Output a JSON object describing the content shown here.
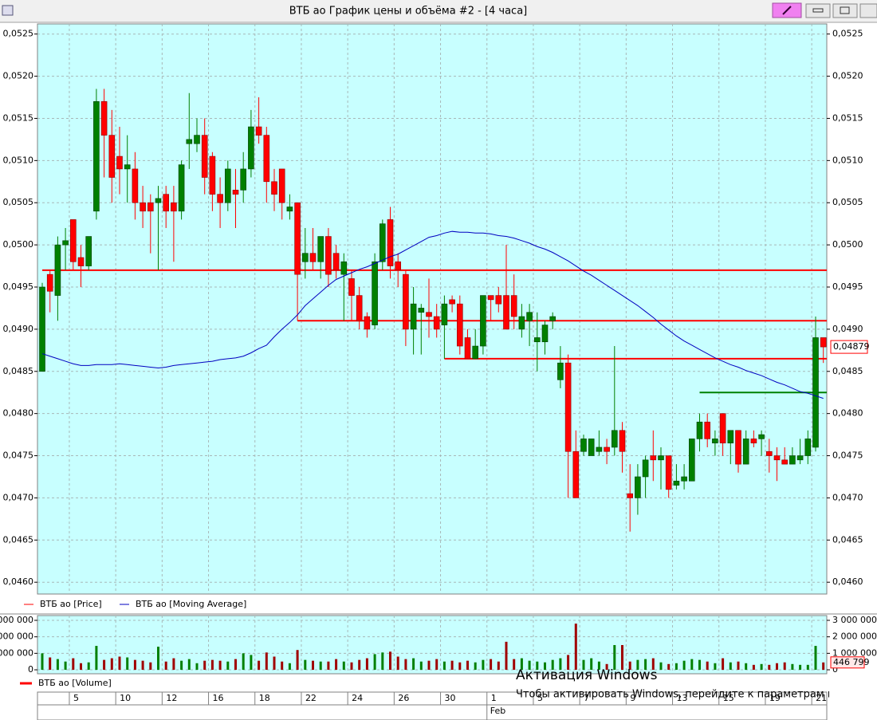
{
  "window": {
    "title": "ВТБ ао График цены и объёма #2 - [4 часа]"
  },
  "watermark": {
    "title": "Активация Windows",
    "text": "Чтобы активировать Windows, перейдите к параметрам компьютера."
  },
  "chart_data": [
    {
      "type": "candlestick",
      "categories": [
        null,
        null,
        null,
        null,
        "5",
        null,
        null,
        null,
        null,
        null,
        "10",
        null,
        null,
        null,
        null,
        null,
        "12",
        null,
        null,
        null,
        null,
        null,
        "16",
        null,
        null,
        null,
        null,
        null,
        "18",
        null,
        null,
        null,
        null,
        null,
        "22",
        null,
        null,
        null,
        null,
        null,
        "24",
        null,
        null,
        null,
        null,
        null,
        "26",
        null,
        null,
        null,
        null,
        null,
        "30",
        null,
        null,
        null,
        null,
        null,
        "1",
        null,
        null,
        null,
        null,
        null,
        "5",
        null,
        null,
        null,
        null,
        null,
        "7",
        null,
        null,
        null,
        null,
        null,
        "9",
        null,
        null,
        null,
        null,
        null,
        "13",
        null,
        null,
        null,
        null,
        null,
        "15",
        null,
        null,
        null,
        null,
        null,
        "19",
        null,
        null,
        null,
        null,
        null,
        "21",
        null
      ],
      "month_categories": [
        null,
        null,
        null,
        null,
        null,
        null,
        null,
        null,
        null,
        null,
        null,
        null,
        null,
        null,
        null,
        null,
        null,
        null,
        null,
        null,
        null,
        null,
        null,
        null,
        null,
        null,
        null,
        null,
        null,
        null,
        null,
        null,
        null,
        null,
        null,
        null,
        null,
        null,
        null,
        null,
        null,
        null,
        null,
        null,
        null,
        null,
        null,
        null,
        null,
        null,
        null,
        null,
        null,
        null,
        null,
        null,
        null,
        null,
        "Feb",
        null,
        null,
        null,
        null,
        null,
        null,
        null,
        null,
        null,
        null,
        null,
        null,
        null,
        null,
        null,
        null,
        null,
        null,
        null,
        null,
        null,
        null,
        null,
        null,
        null,
        null,
        null,
        null,
        null,
        null,
        null,
        null,
        null,
        null,
        null,
        null,
        null,
        null,
        null,
        null,
        null,
        null,
        null
      ],
      "series": [
        {
          "name": "ВТБ ао [Price]",
          "color": "#ff0000",
          "up_color": "#008000",
          "down_color": "#ff0000",
          "open": [
            0.0485,
            0.04965,
            0.0494,
            0.05,
            0.0503,
            0.04985,
            0.04975,
            0.0504,
            0.0517,
            0.0513,
            0.05105,
            0.0509,
            0.0509,
            0.0505,
            0.0505,
            0.0505,
            0.0506,
            0.0505,
            0.0504,
            0.0512,
            0.0512,
            0.0513,
            0.05105,
            0.0506,
            0.0505,
            0.05065,
            0.05065,
            0.0509,
            0.0514,
            0.0513,
            0.05075,
            0.0509,
            0.0504,
            0.0505,
            0.0498,
            0.0499,
            0.0498,
            0.0501,
            0.0499,
            0.04965,
            0.0496,
            0.0494,
            0.04915,
            0.04905,
            0.0498,
            0.0503,
            0.0498,
            0.04965,
            0.049,
            0.0492,
            0.0492,
            0.04915,
            0.04905,
            0.04935,
            0.0493,
            0.0489,
            0.04865,
            0.0488,
            0.0494,
            0.0494,
            0.0494,
            0.0494,
            0.049,
            0.0491,
            0.04885,
            0.04885,
            0.0491,
            0.0484,
            0.0486,
            0.04755,
            0.04755,
            0.0475,
            0.04755,
            0.0476,
            0.0476,
            0.0478,
            0.04705,
            0.047,
            0.04725,
            0.0475,
            0.04745,
            0.0475,
            0.04715,
            0.0472,
            0.0472,
            0.0477,
            0.0479,
            0.04765,
            0.048,
            0.04765,
            0.0478,
            0.0474,
            0.0477,
            0.0477,
            0.04755,
            0.0475,
            0.04745,
            0.0474,
            0.04745,
            0.0475,
            0.0476,
            0.0489
          ],
          "high": [
            0.04955,
            0.0497,
            0.0501,
            0.0502,
            0.0503,
            0.05,
            0.0501,
            0.05185,
            0.05185,
            0.0516,
            0.0514,
            0.0513,
            0.0511,
            0.0507,
            0.0506,
            0.0507,
            0.0507,
            0.0507,
            0.051,
            0.0518,
            0.0515,
            0.0515,
            0.0511,
            0.0508,
            0.051,
            0.0509,
            0.0511,
            0.0516,
            0.05175,
            0.0514,
            0.0509,
            0.0509,
            0.0506,
            0.0505,
            0.0502,
            0.0502,
            0.0501,
            0.0502,
            0.05,
            0.0499,
            0.0497,
            0.0495,
            0.0492,
            0.0499,
            0.0503,
            0.05045,
            0.0499,
            0.0497,
            0.0495,
            0.0493,
            0.0496,
            0.0493,
            0.0494,
            0.0494,
            0.0494,
            0.049,
            0.049,
            0.0494,
            0.0494,
            0.0495,
            0.05,
            0.04965,
            0.0493,
            0.0493,
            0.0492,
            0.0491,
            0.0492,
            0.0488,
            0.0487,
            0.0478,
            0.04775,
            0.0477,
            0.0478,
            0.0477,
            0.0488,
            0.0479,
            0.0474,
            0.0474,
            0.0475,
            0.0478,
            0.0476,
            0.0475,
            0.0474,
            0.0474,
            0.0477,
            0.048,
            0.048,
            0.0478,
            0.048,
            0.0478,
            0.0478,
            0.0478,
            0.0478,
            0.0478,
            0.0477,
            0.0476,
            0.0476,
            0.0476,
            0.0477,
            0.0478,
            0.04915,
            0.0489
          ],
          "low": [
            0.0485,
            0.0492,
            0.0491,
            0.0497,
            0.0497,
            0.0495,
            0.0497,
            0.0503,
            0.0508,
            0.0505,
            0.0506,
            0.0505,
            0.0503,
            0.0502,
            0.0499,
            0.0497,
            0.0502,
            0.0498,
            0.0503,
            0.0509,
            0.0511,
            0.0506,
            0.0504,
            0.0502,
            0.0504,
            0.0502,
            0.0505,
            0.0508,
            0.0512,
            0.0505,
            0.0504,
            0.0503,
            0.0503,
            0.0491,
            0.0496,
            0.0497,
            0.0496,
            0.0495,
            0.0496,
            0.0491,
            0.0491,
            0.049,
            0.0489,
            0.049,
            0.0497,
            0.0496,
            0.0495,
            0.0488,
            0.0487,
            0.0487,
            0.0489,
            0.0489,
            0.04865,
            0.0492,
            0.0487,
            0.04865,
            0.04865,
            0.0487,
            0.0491,
            0.0492,
            0.049,
            0.049,
            0.0489,
            0.0488,
            0.0485,
            0.0487,
            0.049,
            0.0483,
            0.047,
            0.047,
            0.0475,
            0.0475,
            0.0475,
            0.0474,
            0.0475,
            0.0473,
            0.0466,
            0.0468,
            0.047,
            0.0472,
            0.0471,
            0.047,
            0.0471,
            0.0471,
            0.0472,
            0.04755,
            0.0476,
            0.0475,
            0.0475,
            0.0474,
            0.0473,
            0.0474,
            0.0476,
            0.0475,
            0.0473,
            0.0472,
            0.0474,
            0.0474,
            0.0474,
            0.0474,
            0.04755,
            0.0486
          ],
          "close": [
            0.0495,
            0.04945,
            0.05,
            0.05005,
            0.0498,
            0.04975,
            0.0501,
            0.0517,
            0.0513,
            0.0508,
            0.0509,
            0.05095,
            0.0505,
            0.0504,
            0.0504,
            0.05055,
            0.0504,
            0.0504,
            0.05095,
            0.05125,
            0.0513,
            0.0508,
            0.0506,
            0.0505,
            0.0509,
            0.0506,
            0.0509,
            0.0514,
            0.0513,
            0.05075,
            0.0506,
            0.0505,
            0.05045,
            0.04965,
            0.0499,
            0.0498,
            0.0501,
            0.04965,
            0.0497,
            0.0498,
            0.0494,
            0.0491,
            0.049,
            0.0498,
            0.05025,
            0.04975,
            0.0497,
            0.049,
            0.0493,
            0.04925,
            0.04915,
            0.049,
            0.0493,
            0.0493,
            0.0488,
            0.04865,
            0.0488,
            0.0494,
            0.04935,
            0.0493,
            0.049,
            0.04915,
            0.04915,
            0.0492,
            0.0489,
            0.04905,
            0.04915,
            0.0486,
            0.04755,
            0.047,
            0.0477,
            0.0477,
            0.0476,
            0.04755,
            0.0478,
            0.04755,
            0.047,
            0.04725,
            0.04745,
            0.04745,
            0.0475,
            0.0471,
            0.0472,
            0.04725,
            0.0477,
            0.0479,
            0.0477,
            0.0477,
            0.04765,
            0.0478,
            0.0474,
            0.0477,
            0.04765,
            0.04775,
            0.0475,
            0.04745,
            0.0474,
            0.0475,
            0.0475,
            0.0477,
            0.0489,
            0.04879
          ],
          "last_label": "0,04879"
        },
        {
          "name": "ВТБ ао [Moving Average]",
          "color": "#0000c0",
          "values": [
            0.04871,
            0.04868,
            0.04865,
            0.04862,
            0.04859,
            0.04857,
            0.04857,
            0.04858,
            0.04858,
            0.04858,
            0.04859,
            0.04858,
            0.04857,
            0.04856,
            0.04855,
            0.04854,
            0.04855,
            0.04857,
            0.04858,
            0.04859,
            0.0486,
            0.04861,
            0.04862,
            0.04864,
            0.04865,
            0.04866,
            0.04868,
            0.04872,
            0.04877,
            0.04881,
            0.04891,
            0.049,
            0.04908,
            0.04917,
            0.04928,
            0.04936,
            0.04944,
            0.04952,
            0.04959,
            0.04963,
            0.04967,
            0.04971,
            0.04974,
            0.04978,
            0.04982,
            0.04986,
            0.04989,
            0.04994,
            0.04999,
            0.05004,
            0.05009,
            0.05011,
            0.05014,
            0.05016,
            0.05015,
            0.05015,
            0.05014,
            0.05014,
            0.05013,
            0.05011,
            0.0501,
            0.05008,
            0.05005,
            0.05002,
            0.04998,
            0.04995,
            0.04991,
            0.04986,
            0.04981,
            0.04975,
            0.04969,
            0.04964,
            0.04958,
            0.04952,
            0.04946,
            0.0494,
            0.04934,
            0.04928,
            0.04921,
            0.04914,
            0.04906,
            0.04899,
            0.04892,
            0.04886,
            0.04881,
            0.04876,
            0.04871,
            0.04866,
            0.04862,
            0.04858,
            0.04855,
            0.04851,
            0.04848,
            0.04845,
            0.04841,
            0.04837,
            0.04834,
            0.0483,
            0.04826,
            0.04824,
            0.04821,
            0.04818
          ]
        }
      ],
      "levels": [
        {
          "value": 0.0497,
          "start": 0,
          "color": "#ff0000"
        },
        {
          "value": 0.0491,
          "start": 33,
          "color": "#ff0000"
        },
        {
          "value": 0.04865,
          "start": 52,
          "color": "#ff0000"
        },
        {
          "value": 0.04825,
          "start": 85,
          "color": "#008000"
        }
      ],
      "ylim": [
        0.04586,
        0.05262
      ],
      "yticks": [
        {
          "value": 0.046,
          "label": "0,0460"
        },
        {
          "value": 0.0465,
          "label": "0,0465"
        },
        {
          "value": 0.047,
          "label": "0,0470"
        },
        {
          "value": 0.0475,
          "label": "0,0475"
        },
        {
          "value": 0.048,
          "label": "0,0480"
        },
        {
          "value": 0.0485,
          "label": "0,0485"
        },
        {
          "value": 0.049,
          "label": "0,0490"
        },
        {
          "value": 0.0495,
          "label": "0,0495"
        },
        {
          "value": 0.05,
          "label": "0,0500"
        },
        {
          "value": 0.0505,
          "label": "0,0505"
        },
        {
          "value": 0.051,
          "label": "0,0510"
        },
        {
          "value": 0.0515,
          "label": "0,0515"
        },
        {
          "value": 0.052,
          "label": "0,0520"
        },
        {
          "value": 0.0525,
          "label": "0,0525"
        }
      ],
      "grid": true,
      "background": "#c8ffff"
    },
    {
      "type": "bar",
      "series": [
        {
          "name": "ВТБ ао [Volume]",
          "color": "#ff0000",
          "up_color": "#008000",
          "down_color": "#a00000",
          "values": [
            1000000,
            750000,
            650000,
            500000,
            700000,
            400000,
            450000,
            1450000,
            600000,
            700000,
            800000,
            750000,
            600000,
            550000,
            450000,
            1400000,
            500000,
            700000,
            550000,
            650000,
            400000,
            550000,
            600000,
            550000,
            500000,
            650000,
            1000000,
            900000,
            550000,
            1050000,
            800000,
            500000,
            400000,
            1200000,
            600000,
            550000,
            500000,
            500000,
            650000,
            500000,
            450000,
            600000,
            700000,
            950000,
            1050000,
            1100000,
            800000,
            650000,
            700000,
            500000,
            550000,
            650000,
            500000,
            550000,
            450000,
            550000,
            450000,
            600000,
            650000,
            500000,
            1700000,
            650000,
            700000,
            550000,
            500000,
            450000,
            600000,
            700000,
            900000,
            2800000,
            600000,
            700000,
            500000,
            350000,
            1500000,
            1500000,
            500000,
            600000,
            650000,
            700000,
            450000,
            350000,
            400000,
            550000,
            650000,
            600000,
            500000,
            400000,
            700000,
            450000,
            500000,
            400000,
            300000,
            350000,
            300000,
            400000,
            450000,
            350000,
            300000,
            300000,
            1450000,
            446799
          ],
          "last_label": "446 799"
        }
      ],
      "ylim": [
        -240000,
        3290000
      ],
      "yticks": [
        0,
        {
          "value": 1000000,
          "label": "1 000 000"
        },
        {
          "value": 2000000,
          "label": "2 000 000"
        },
        {
          "value": 3000000,
          "label": "3 000 000"
        }
      ],
      "grid": true,
      "background": "#c8ffff"
    }
  ]
}
